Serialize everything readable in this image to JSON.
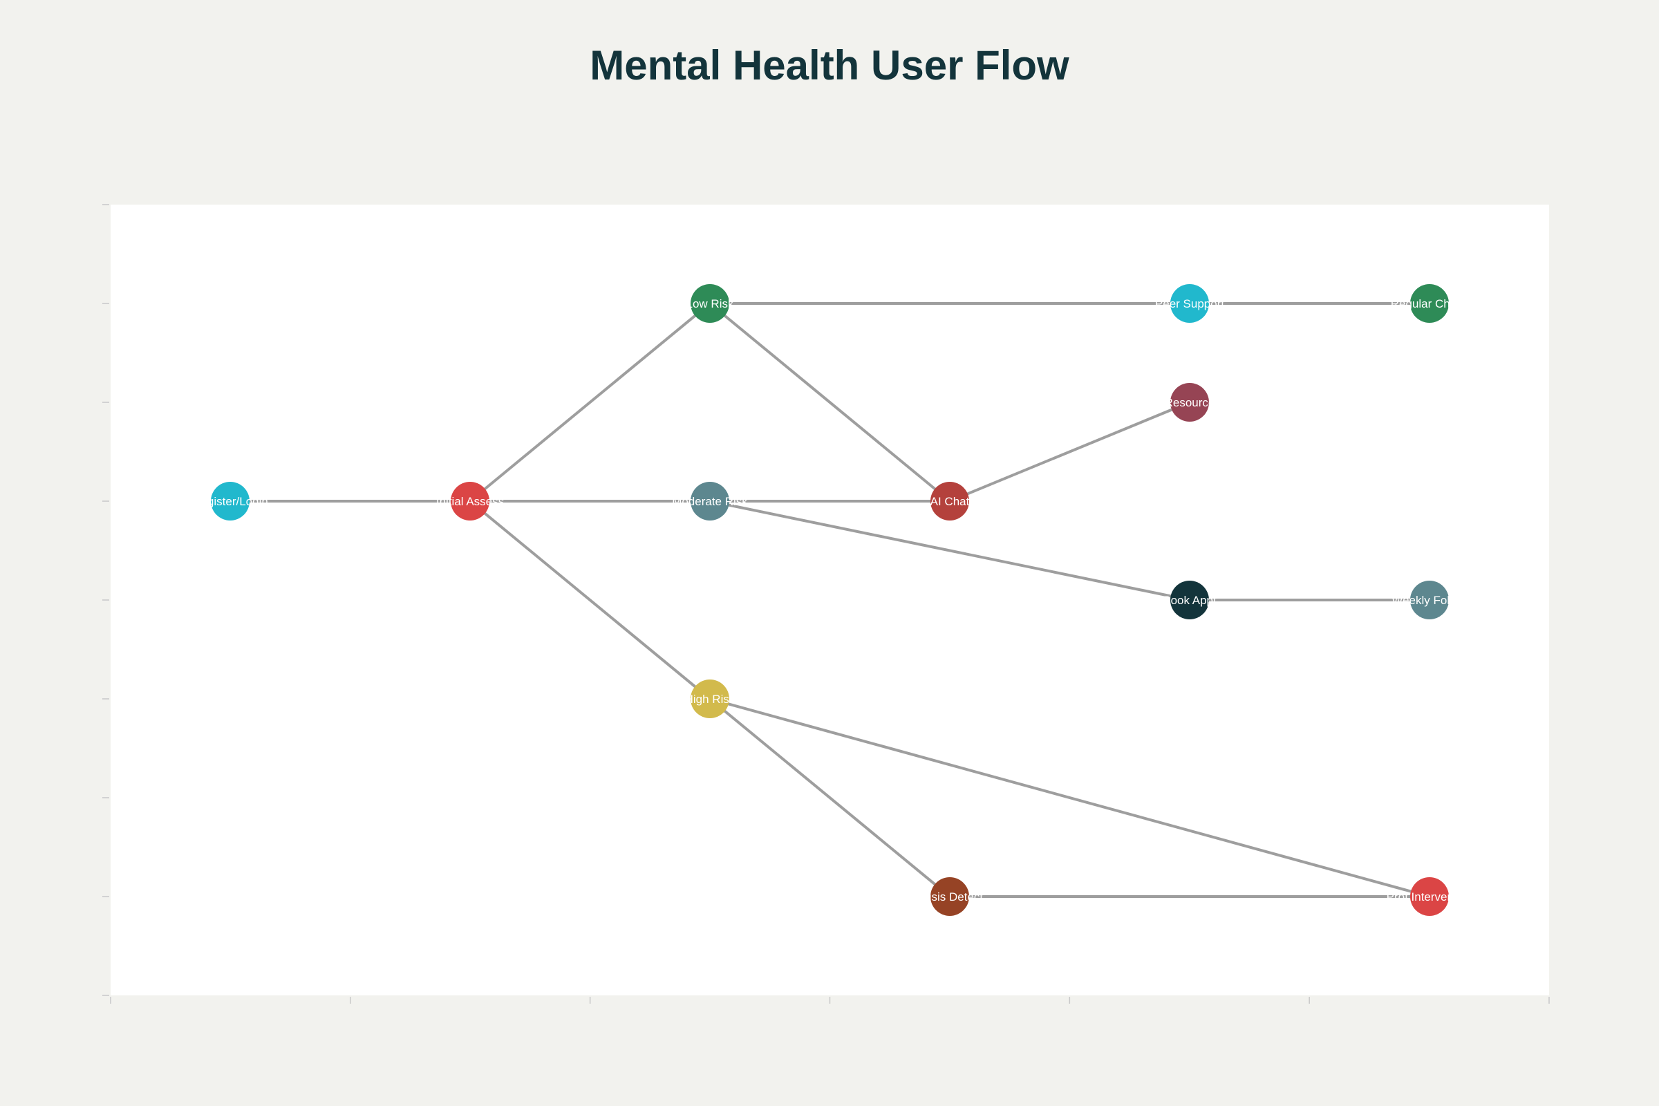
{
  "title": "Mental Health User Flow",
  "nodes": [
    {
      "id": "register",
      "label": "Register/Login",
      "color": "#21b8cd",
      "col": 0,
      "row": 3
    },
    {
      "id": "initial",
      "label": "Initial Assess",
      "color": "#db4545",
      "col": 1,
      "row": 3
    },
    {
      "id": "low",
      "label": "Low Risk",
      "color": "#2e8b57",
      "col": 2,
      "row": 1
    },
    {
      "id": "moderate",
      "label": "Moderate Risk",
      "color": "#5d878f",
      "col": 2,
      "row": 3
    },
    {
      "id": "high",
      "label": "High Risk",
      "color": "#d2ba4c",
      "col": 2,
      "row": 5
    },
    {
      "id": "aichat",
      "label": "AI Chat",
      "color": "#b4413c",
      "col": 3,
      "row": 3
    },
    {
      "id": "crisis",
      "label": "Crisis Detect",
      "color": "#944454",
      "col": 3,
      "row": 7,
      "color_fill": "#964325"
    },
    {
      "id": "peer",
      "label": "Peer Support",
      "color": "#21b8cd",
      "col": 4,
      "row": 1
    },
    {
      "id": "resource",
      "label": "Resource",
      "color": "#964454",
      "col": 4,
      "row": 2
    },
    {
      "id": "book",
      "label": "Book Appt",
      "color": "#13343b",
      "col": 4,
      "row": 4
    },
    {
      "id": "regular",
      "label": "Regular Check",
      "color": "#2e8b57",
      "col": 5,
      "row": 1
    },
    {
      "id": "weekly",
      "label": "Weekly Follow",
      "color": "#5d878f",
      "col": 5,
      "row": 4
    },
    {
      "id": "prof",
      "label": "Prof Intervention",
      "color": "#db4545",
      "col": 5,
      "row": 7
    }
  ],
  "edges": [
    [
      "register",
      "initial"
    ],
    [
      "initial",
      "low"
    ],
    [
      "initial",
      "moderate"
    ],
    [
      "initial",
      "high"
    ],
    [
      "low",
      "peer"
    ],
    [
      "low",
      "aichat"
    ],
    [
      "moderate",
      "aichat"
    ],
    [
      "moderate",
      "book"
    ],
    [
      "high",
      "crisis"
    ],
    [
      "high",
      "prof"
    ],
    [
      "aichat",
      "resource"
    ],
    [
      "peer",
      "regular"
    ],
    [
      "book",
      "weekly"
    ],
    [
      "crisis",
      "prof"
    ]
  ],
  "colors": {
    "edge": "#9e9e9e",
    "plot_bg": "#ffffff",
    "page_bg": "#f2f2ee",
    "axis": "#c8c8c8"
  }
}
